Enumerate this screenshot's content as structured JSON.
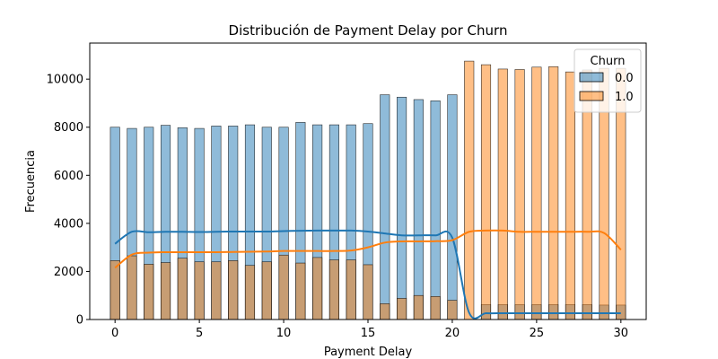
{
  "chart_data": {
    "type": "bar",
    "title": "Distribución de Payment Delay por Churn",
    "xlabel": "Payment Delay",
    "ylabel": "Frecuencia",
    "xlim": [
      -1.5,
      31.5
    ],
    "ylim": [
      0,
      11500
    ],
    "xticks": [
      0,
      5,
      10,
      15,
      20,
      25,
      30
    ],
    "yticks": [
      0,
      2000,
      4000,
      6000,
      8000,
      10000
    ],
    "grid": false,
    "legend": {
      "title": "Churn",
      "placement": "top-right"
    },
    "x": [
      0,
      1,
      2,
      3,
      4,
      5,
      6,
      7,
      8,
      9,
      10,
      11,
      12,
      13,
      14,
      15,
      16,
      17,
      18,
      19,
      20,
      21,
      22,
      23,
      24,
      25,
      26,
      27,
      28,
      29,
      30
    ],
    "series": [
      {
        "name": "0.0",
        "color": "#1f77b4",
        "values": [
          8000,
          7950,
          8000,
          8080,
          7980,
          7950,
          8050,
          8050,
          8100,
          8000,
          8000,
          8200,
          8100,
          8100,
          8100,
          8150,
          9350,
          9250,
          9150,
          9100,
          9350,
          0,
          620,
          620,
          620,
          620,
          620,
          620,
          620,
          600,
          600
        ],
        "kde": [
          3150,
          3650,
          3630,
          3650,
          3650,
          3640,
          3650,
          3660,
          3660,
          3660,
          3680,
          3690,
          3700,
          3700,
          3700,
          3660,
          3580,
          3500,
          3500,
          3500,
          3400,
          280,
          260,
          260,
          260,
          260,
          260,
          260,
          260,
          260,
          260
        ]
      },
      {
        "name": "1.0",
        "color": "#ff7f0e",
        "values": [
          2450,
          2650,
          2300,
          2370,
          2550,
          2400,
          2400,
          2450,
          2250,
          2400,
          2680,
          2350,
          2580,
          2480,
          2480,
          2280,
          660,
          880,
          1000,
          960,
          800,
          10750,
          10600,
          10420,
          10400,
          10500,
          10520,
          10300,
          10380,
          10450,
          10450
        ],
        "kde": [
          2150,
          2700,
          2780,
          2800,
          2800,
          2800,
          2800,
          2810,
          2820,
          2830,
          2850,
          2850,
          2850,
          2850,
          2870,
          3000,
          3200,
          3250,
          3250,
          3260,
          3300,
          3650,
          3700,
          3700,
          3650,
          3650,
          3650,
          3650,
          3650,
          3600,
          2900
        ]
      }
    ]
  }
}
